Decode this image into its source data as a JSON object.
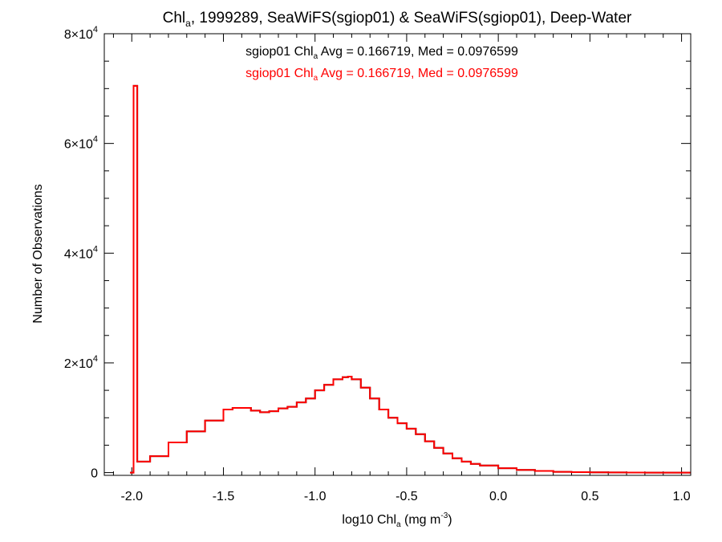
{
  "chart_data": {
    "type": "histogram",
    "title": {
      "pre": "Chl",
      "sub": "a",
      "post": ", 1999289, SeaWiFS(sgiop01) & SeaWiFS(sgiop01), Deep-Water"
    },
    "xlabel": {
      "pre": "log10 Chl",
      "sub": "a",
      "post": " (mg m",
      "sup": "-3",
      "end": ")"
    },
    "ylabel": "Number of Observations",
    "xlim": [
      -2.15,
      1.05
    ],
    "ylim": [
      -500,
      80000
    ],
    "x_ticks": [
      -2.0,
      -1.5,
      -1.0,
      -0.5,
      0.0,
      0.5,
      1.0
    ],
    "x_tick_labels": [
      "-2.0",
      "-1.5",
      "-1.0",
      "-0.5",
      "0.0",
      "0.5",
      "1.0"
    ],
    "y_ticks": [
      {
        "value": 0,
        "mant": "0",
        "exp": ""
      },
      {
        "value": 20000,
        "mant": "2×10",
        "exp": "4"
      },
      {
        "value": 40000,
        "mant": "4×10",
        "exp": "4"
      },
      {
        "value": 60000,
        "mant": "6×10",
        "exp": "4"
      },
      {
        "value": 80000,
        "mant": "8×10",
        "exp": "4"
      }
    ],
    "annotations": [
      {
        "pre": "sgiop01 Chl",
        "sub": "a",
        "post": " Avg = 0.166719, Med = 0.0976599",
        "color": "#000000"
      },
      {
        "pre": "sgiop01 Chl",
        "sub": "a",
        "post": " Avg = 0.166719, Med = 0.0976599",
        "color": "#ff0000"
      }
    ],
    "series": [
      {
        "color": "#000000",
        "x": [
          -2.01,
          -1.99,
          -1.97,
          -1.9,
          -1.8,
          -1.7,
          -1.6,
          -1.5,
          -1.45,
          -1.4,
          -1.35,
          -1.3,
          -1.25,
          -1.2,
          -1.15,
          -1.1,
          -1.05,
          -1.0,
          -0.95,
          -0.9,
          -0.85,
          -0.82,
          -0.8,
          -0.75,
          -0.7,
          -0.65,
          -0.6,
          -0.55,
          -0.5,
          -0.45,
          -0.4,
          -0.35,
          -0.3,
          -0.25,
          -0.2,
          -0.15,
          -0.1,
          0.0,
          0.1,
          0.2,
          0.3,
          0.4,
          0.5,
          0.6,
          0.7,
          0.8,
          0.9,
          1.0,
          1.05
        ],
        "y": [
          0,
          70500,
          2000,
          3000,
          5500,
          7500,
          9500,
          11500,
          11800,
          11800,
          11300,
          11000,
          11200,
          11700,
          12000,
          12800,
          13500,
          15000,
          16000,
          17000,
          17400,
          17500,
          17000,
          15500,
          13500,
          11500,
          10000,
          9000,
          8000,
          7000,
          5700,
          4500,
          3500,
          2600,
          2000,
          1600,
          1300,
          800,
          500,
          300,
          150,
          80,
          40,
          20,
          10,
          0,
          0,
          0,
          0
        ]
      },
      {
        "color": "#ff0000",
        "x": [
          -2.01,
          -1.99,
          -1.97,
          -1.9,
          -1.8,
          -1.7,
          -1.6,
          -1.5,
          -1.45,
          -1.4,
          -1.35,
          -1.3,
          -1.25,
          -1.2,
          -1.15,
          -1.1,
          -1.05,
          -1.0,
          -0.95,
          -0.9,
          -0.85,
          -0.82,
          -0.8,
          -0.75,
          -0.7,
          -0.65,
          -0.6,
          -0.55,
          -0.5,
          -0.45,
          -0.4,
          -0.35,
          -0.3,
          -0.25,
          -0.2,
          -0.15,
          -0.1,
          0.0,
          0.1,
          0.2,
          0.3,
          0.4,
          0.5,
          0.6,
          0.7,
          0.8,
          0.9,
          1.0,
          1.05
        ],
        "y": [
          0,
          70500,
          2000,
          3000,
          5500,
          7500,
          9500,
          11500,
          11800,
          11800,
          11300,
          11000,
          11200,
          11700,
          12000,
          12800,
          13500,
          15000,
          16000,
          17000,
          17400,
          17500,
          17000,
          15500,
          13500,
          11500,
          10000,
          9000,
          8000,
          7000,
          5700,
          4500,
          3500,
          2600,
          2000,
          1600,
          1300,
          800,
          500,
          300,
          150,
          80,
          40,
          20,
          10,
          0,
          0,
          0,
          0
        ]
      }
    ]
  }
}
